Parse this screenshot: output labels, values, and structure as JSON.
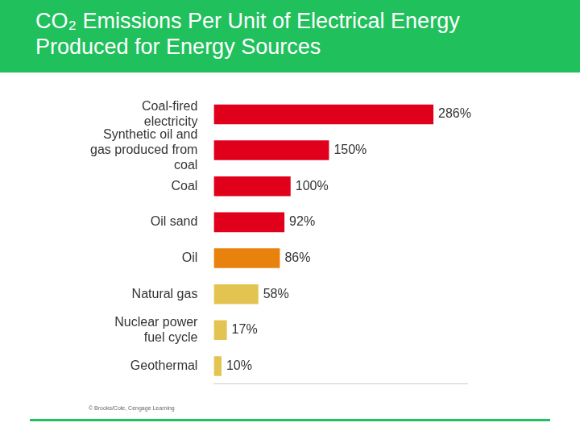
{
  "chart_data": {
    "type": "bar",
    "title": "CO₂ Emissions Per Unit of Electrical Energy Produced for Energy Sources",
    "annotations": [
      "© Brooks/Cole, Cengage Learning"
    ],
    "orientation": "horizontal",
    "categories": [
      "Coal-fired electricity",
      "Synthetic oil and gas produced from coal",
      "Coal",
      "Oil sand",
      "Oil",
      "Natural gas",
      "Nuclear power fuel cycle",
      "Geothermal"
    ],
    "values": [
      286,
      150,
      100,
      92,
      86,
      58,
      17,
      10
    ],
    "value_labels": [
      "286%",
      "150%",
      "100%",
      "92%",
      "86%",
      "58%",
      "17%",
      "10%"
    ],
    "colors": [
      "#e0001b",
      "#e0001b",
      "#e0001b",
      "#e0001b",
      "#e8820c",
      "#e3c450",
      "#e3c450",
      "#e3c450"
    ],
    "xlim": [
      0,
      330
    ],
    "data_labels": true,
    "tick_labels": "y",
    "grid": false,
    "legend": false
  }
}
